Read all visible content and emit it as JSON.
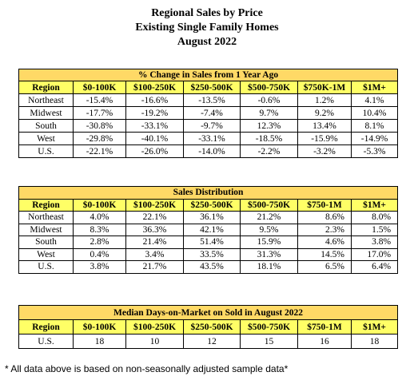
{
  "title": {
    "line1": "Regional Sales by Price",
    "line2": "Existing Single Family Homes",
    "line3": "August 2022"
  },
  "columns": [
    "Region",
    "$0-100K",
    "$100-250K",
    "$250-500K",
    "$500-750K",
    "$750K-1M",
    "$1M+"
  ],
  "columns_alt": [
    "Region",
    "$0-100K",
    "$100-250K",
    "$250-500K",
    "$500-750K",
    "$750-1M",
    "$1M+"
  ],
  "table1": {
    "caption": "% Change in Sales from 1 Year Ago",
    "rows": [
      {
        "region": "Northeast",
        "values": [
          "-15.4%",
          "-16.6%",
          "-13.5%",
          "-0.6%",
          "1.2%",
          "4.1%"
        ]
      },
      {
        "region": "Midwest",
        "values": [
          "-17.7%",
          "-19.2%",
          "-7.4%",
          "9.7%",
          "9.2%",
          "10.4%"
        ]
      },
      {
        "region": "South",
        "values": [
          "-30.8%",
          "-33.1%",
          "-9.7%",
          "12.3%",
          "13.4%",
          "8.1%"
        ]
      },
      {
        "region": "West",
        "values": [
          "-29.8%",
          "-40.1%",
          "-33.1%",
          "-18.5%",
          "-15.9%",
          "-14.9%"
        ]
      },
      {
        "region": "U.S.",
        "values": [
          "-22.1%",
          "-26.0%",
          "-14.0%",
          "-2.2%",
          "-3.2%",
          "-5.3%"
        ]
      }
    ]
  },
  "table2": {
    "caption": "Sales Distribution",
    "rows": [
      {
        "region": "Northeast",
        "values": [
          "4.0%",
          "22.1%",
          "36.1%",
          "21.2%",
          "8.6%",
          "8.0%"
        ]
      },
      {
        "region": "Midwest",
        "values": [
          "8.3%",
          "36.3%",
          "42.1%",
          "9.5%",
          "2.3%",
          "1.5%"
        ]
      },
      {
        "region": "South",
        "values": [
          "2.8%",
          "21.4%",
          "51.4%",
          "15.9%",
          "4.6%",
          "3.8%"
        ]
      },
      {
        "region": "West",
        "values": [
          "0.4%",
          "3.4%",
          "33.5%",
          "31.3%",
          "14.5%",
          "17.0%"
        ]
      },
      {
        "region": "U.S.",
        "values": [
          "3.8%",
          "21.7%",
          "43.5%",
          "18.1%",
          "6.5%",
          "6.4%"
        ]
      }
    ]
  },
  "table3": {
    "caption": "Median Days-on-Market on Sold in August 2022",
    "rows": [
      {
        "region": "U.S.",
        "values": [
          "18",
          "10",
          "12",
          "15",
          "16",
          "18"
        ]
      }
    ]
  },
  "footnote": "* All data above is based on non-seasonally adjusted sample data*"
}
